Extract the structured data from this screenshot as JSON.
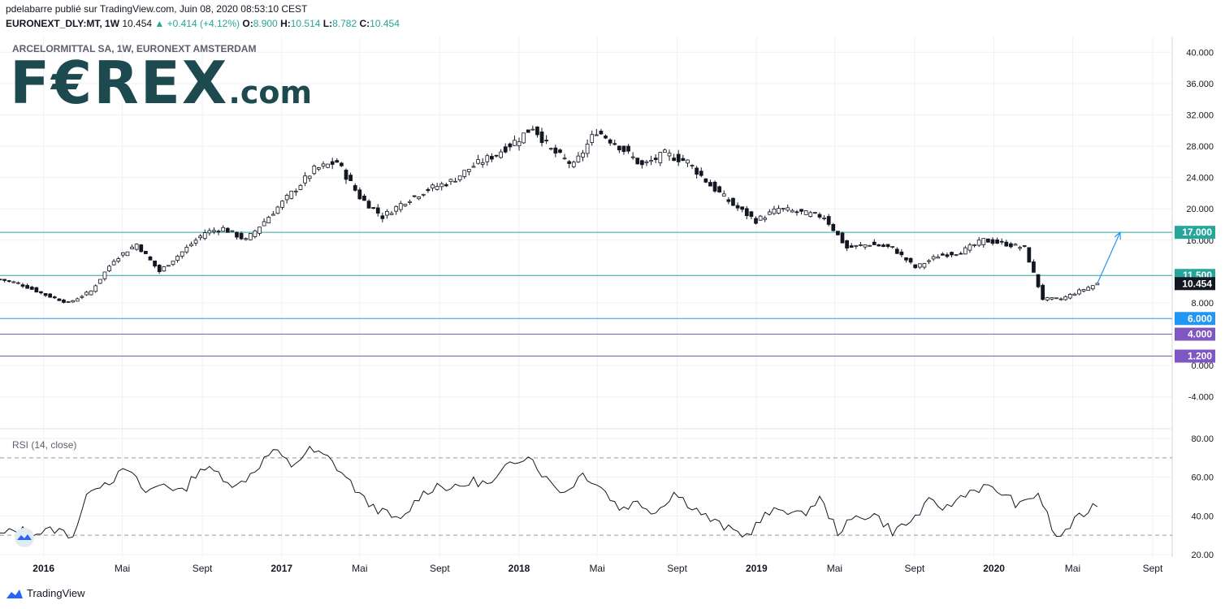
{
  "header": {
    "line1": "pdelabarre publié sur TradingView.com, Juin 08, 2020 08:53:10 CEST",
    "symbol": "EURONEXT_DLY:MT, 1W",
    "last": "10.454",
    "change": "▲ +0.414 (+4.12%)",
    "o_label": "O:",
    "o": "8.900",
    "h_label": "H:",
    "h": "10.514",
    "l_label": "L:",
    "l": "8.782",
    "c_label": "C:",
    "c": "10.454"
  },
  "subtitle": "ARCELORMITTAL SA, 1W, EURONEXT AMSTERDAM",
  "logo": {
    "main": "F€REX",
    "suffix": ".com"
  },
  "rsi_label": "RSI (14, close)",
  "footer": {
    "brand": "TradingView"
  },
  "colors": {
    "up": "#26a69a",
    "level_teal": "#26a69a",
    "level_blue": "#2196f3",
    "level_purple": "#7e57c2",
    "arrow": "#2196f3",
    "price_tag": "#131722",
    "grid": "#eef1f5",
    "logo": "#1d4a4f"
  },
  "chart_data": [
    {
      "type": "candlestick",
      "title": "ARCELORMITTAL SA, 1W, EURONEXT AMSTERDAM",
      "y_ticks": [
        40,
        36,
        32,
        28,
        24,
        20,
        16,
        8,
        0,
        -4
      ],
      "y_tick_labels": [
        "40.000",
        "36.000",
        "32.000",
        "28.000",
        "24.000",
        "20.000",
        "16.000",
        "8.000",
        "0.000",
        "-4.000"
      ],
      "ylim": [
        -6,
        42
      ],
      "x_tick_labels": [
        "2016",
        "Mai",
        "Sept",
        "2017",
        "Mai",
        "Sept",
        "2018",
        "Mai",
        "Sept",
        "2019",
        "Mai",
        "Sept",
        "2020",
        "Mai",
        "Sept"
      ],
      "x_tick_dates": [
        "2016-01-01",
        "2016-05-01",
        "2016-09-01",
        "2017-01-01",
        "2017-05-01",
        "2017-09-01",
        "2018-01-01",
        "2018-05-01",
        "2018-09-01",
        "2019-01-01",
        "2019-05-01",
        "2019-09-01",
        "2020-01-01",
        "2020-05-01",
        "2020-09-01"
      ],
      "xlim": [
        "2015-10-26",
        "2020-10-01"
      ],
      "last_price": 10.454,
      "last_price_label": "10.454",
      "levels": [
        {
          "value": 17.0,
          "label": "17.000",
          "color": "#26a69a"
        },
        {
          "value": 11.5,
          "label": "11.500",
          "color": "#26a69a"
        },
        {
          "value": 6.0,
          "label": "6.000",
          "color": "#2196f3"
        },
        {
          "value": 4.0,
          "label": "4.000",
          "color": "#7e57c2"
        },
        {
          "value": 1.2,
          "label": "1.200",
          "color": "#7e57c2"
        }
      ],
      "projection_arrow": {
        "from": [
          "2020-06-08",
          10.5
        ],
        "to": [
          "2020-07-13",
          17.0
        ]
      },
      "close_series": [
        [
          "2015-10-26",
          11.0
        ],
        [
          "2015-11-23",
          10.5
        ],
        [
          "2016-01-04",
          9.0
        ],
        [
          "2016-02-08",
          8.0
        ],
        [
          "2016-03-14",
          9.5
        ],
        [
          "2016-04-18",
          13.5
        ],
        [
          "2016-05-23",
          15.5
        ],
        [
          "2016-06-27",
          12.0
        ],
        [
          "2016-08-01",
          14.5
        ],
        [
          "2016-09-05",
          17.0
        ],
        [
          "2016-10-03",
          17.5
        ],
        [
          "2016-11-07",
          16.0
        ],
        [
          "2016-12-12",
          19.0
        ],
        [
          "2017-01-16",
          22.0
        ],
        [
          "2017-02-20",
          25.0
        ],
        [
          "2017-03-27",
          26.0
        ],
        [
          "2017-05-01",
          21.5
        ],
        [
          "2017-06-05",
          19.0
        ],
        [
          "2017-07-10",
          21.0
        ],
        [
          "2017-08-14",
          22.5
        ],
        [
          "2017-09-18",
          23.5
        ],
        [
          "2017-10-23",
          25.5
        ],
        [
          "2017-11-27",
          27.0
        ],
        [
          "2018-01-01",
          29.0
        ],
        [
          "2018-01-22",
          30.5
        ],
        [
          "2018-02-19",
          27.5
        ],
        [
          "2018-03-26",
          25.5
        ],
        [
          "2018-04-30",
          30.0
        ],
        [
          "2018-06-04",
          28.0
        ],
        [
          "2018-07-09",
          25.5
        ],
        [
          "2018-08-13",
          27.0
        ],
        [
          "2018-09-17",
          26.0
        ],
        [
          "2018-10-22",
          23.0
        ],
        [
          "2018-11-26",
          20.5
        ],
        [
          "2018-12-31",
          18.5
        ],
        [
          "2019-02-04",
          20.0
        ],
        [
          "2019-03-11",
          19.5
        ],
        [
          "2019-04-15",
          19.0
        ],
        [
          "2019-05-20",
          15.0
        ],
        [
          "2019-06-24",
          15.5
        ],
        [
          "2019-07-29",
          15.0
        ],
        [
          "2019-09-02",
          12.5
        ],
        [
          "2019-10-07",
          14.0
        ],
        [
          "2019-11-11",
          14.5
        ],
        [
          "2019-12-16",
          16.0
        ],
        [
          "2020-01-20",
          15.5
        ],
        [
          "2020-02-17",
          15.0
        ],
        [
          "2020-03-16",
          8.5
        ],
        [
          "2020-04-13",
          8.5
        ],
        [
          "2020-05-11",
          9.5
        ],
        [
          "2020-06-08",
          10.454
        ]
      ]
    },
    {
      "type": "line",
      "title": "RSI (14, close)",
      "y_tick_labels": [
        "80.00",
        "60.00",
        "40.00",
        "20.00"
      ],
      "ylim": [
        20,
        80
      ],
      "bands": [
        70,
        30
      ],
      "series": [
        {
          "values": [
            [
              "2015-10-26",
              30
            ],
            [
              "2015-11-23",
              33
            ],
            [
              "2015-12-21",
              31
            ],
            [
              "2016-01-18",
              33
            ],
            [
              "2016-02-15",
              30
            ],
            [
              "2016-03-14",
              55
            ],
            [
              "2016-04-11",
              58
            ],
            [
              "2016-05-09",
              64
            ],
            [
              "2016-06-06",
              52
            ],
            [
              "2016-07-04",
              57
            ],
            [
              "2016-08-01",
              52
            ],
            [
              "2016-08-29",
              65
            ],
            [
              "2016-09-26",
              62
            ],
            [
              "2016-10-24",
              55
            ],
            [
              "2016-11-21",
              64
            ],
            [
              "2016-12-19",
              74
            ],
            [
              "2017-01-16",
              66
            ],
            [
              "2017-02-13",
              74
            ],
            [
              "2017-03-13",
              70
            ],
            [
              "2017-04-10",
              60
            ],
            [
              "2017-05-08",
              48
            ],
            [
              "2017-06-05",
              42
            ],
            [
              "2017-07-03",
              37
            ],
            [
              "2017-07-31",
              50
            ],
            [
              "2017-08-28",
              56
            ],
            [
              "2017-09-25",
              54
            ],
            [
              "2017-10-23",
              58
            ],
            [
              "2017-11-20",
              56
            ],
            [
              "2017-12-18",
              67
            ],
            [
              "2018-01-15",
              72
            ],
            [
              "2018-02-12",
              59
            ],
            [
              "2018-03-12",
              52
            ],
            [
              "2018-04-09",
              62
            ],
            [
              "2018-05-07",
              55
            ],
            [
              "2018-06-04",
              44
            ],
            [
              "2018-07-02",
              47
            ],
            [
              "2018-07-30",
              42
            ],
            [
              "2018-08-27",
              52
            ],
            [
              "2018-09-24",
              45
            ],
            [
              "2018-10-22",
              38
            ],
            [
              "2018-11-19",
              33
            ],
            [
              "2018-12-17",
              30
            ],
            [
              "2019-01-14",
              40
            ],
            [
              "2019-02-11",
              44
            ],
            [
              "2019-03-11",
              40
            ],
            [
              "2019-04-08",
              49
            ],
            [
              "2019-05-06",
              32
            ],
            [
              "2019-06-03",
              39
            ],
            [
              "2019-07-01",
              41
            ],
            [
              "2019-07-29",
              32
            ],
            [
              "2019-08-26",
              37
            ],
            [
              "2019-09-23",
              47
            ],
            [
              "2019-10-21",
              44
            ],
            [
              "2019-11-18",
              52
            ],
            [
              "2019-12-16",
              55
            ],
            [
              "2020-01-13",
              52
            ],
            [
              "2020-02-10",
              45
            ],
            [
              "2020-03-09",
              52
            ],
            [
              "2020-04-06",
              28
            ],
            [
              "2020-05-04",
              37
            ],
            [
              "2020-06-08",
              47
            ]
          ]
        }
      ]
    }
  ]
}
